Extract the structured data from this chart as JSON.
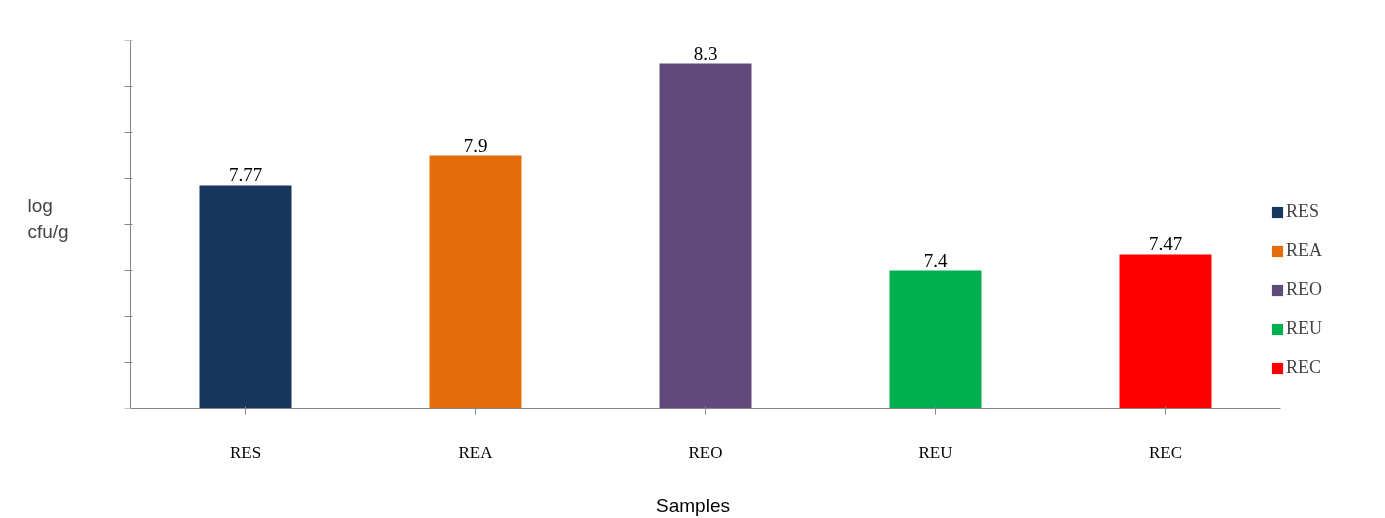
{
  "chart_data": {
    "type": "bar",
    "xlabel": "Samples",
    "ylabel": "log cfu/g",
    "categories": [
      "RES",
      "REA",
      "REO",
      "REU",
      "REC"
    ],
    "series": [
      {
        "name": "RES",
        "color": "#17375e",
        "values": [
          7.77,
          null,
          null,
          null,
          null
        ]
      },
      {
        "name": "REA",
        "color": "#e46c0a",
        "values": [
          null,
          7.9,
          null,
          null,
          null
        ]
      },
      {
        "name": "REO",
        "color": "#604a7b",
        "values": [
          null,
          null,
          8.3,
          null,
          null
        ]
      },
      {
        "name": "REU",
        "color": "#00b050",
        "values": [
          null,
          null,
          null,
          7.4,
          null
        ]
      },
      {
        "name": "REC",
        "color": "#ff0000",
        "values": [
          null,
          null,
          null,
          null,
          7.47
        ]
      }
    ],
    "ylim": [
      6.8,
      8.4
    ],
    "yticks": [
      {
        "value": 6.8,
        "label": null
      },
      {
        "value": 7.0,
        "label": null
      },
      {
        "value": 7.2,
        "label": null
      },
      {
        "value": 7.4,
        "label": null
      },
      {
        "value": 7.6,
        "label": null
      },
      {
        "value": 7.8,
        "label": null
      },
      {
        "value": 8.0,
        "label": null
      },
      {
        "value": 8.2,
        "label": null
      },
      {
        "value": 8.4,
        "label": null
      }
    ],
    "tick_labels": "x",
    "data_labels": true,
    "legend": "right",
    "grid": false
  }
}
